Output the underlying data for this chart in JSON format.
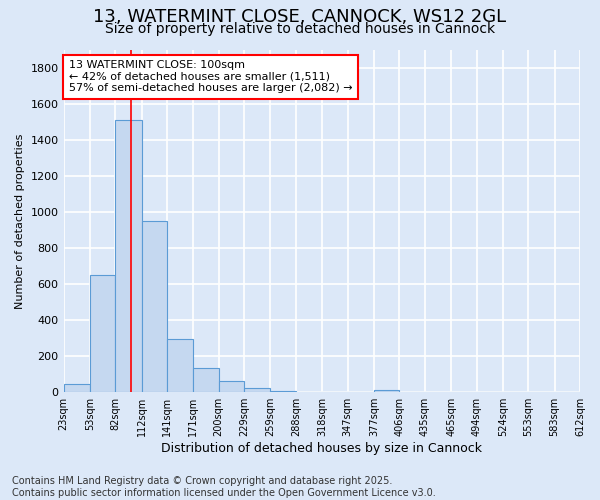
{
  "title_line1": "13, WATERMINT CLOSE, CANNOCK, WS12 2GL",
  "title_line2": "Size of property relative to detached houses in Cannock",
  "xlabel": "Distribution of detached houses by size in Cannock",
  "ylabel": "Number of detached properties",
  "footer_line1": "Contains HM Land Registry data © Crown copyright and database right 2025.",
  "footer_line2": "Contains public sector information licensed under the Open Government Licence v3.0.",
  "annotation_line1": "13 WATERMINT CLOSE: 100sqm",
  "annotation_line2": "← 42% of detached houses are smaller (1,511)",
  "annotation_line3": "57% of semi-detached houses are larger (2,082) →",
  "bar_edges": [
    23,
    53,
    82,
    112,
    141,
    171,
    200,
    229,
    259,
    288,
    318,
    347,
    377,
    406,
    435,
    465,
    494,
    524,
    553,
    583,
    612
  ],
  "bar_heights": [
    45,
    650,
    1511,
    950,
    295,
    135,
    65,
    22,
    5,
    0,
    0,
    0,
    15,
    0,
    0,
    0,
    0,
    0,
    0,
    0
  ],
  "bar_color": "#c5d8f0",
  "bar_edgecolor": "#5b9bd5",
  "vline_x": 100,
  "vline_color": "red",
  "bg_color": "#dce8f8",
  "plot_bg_color": "#dce8f8",
  "grid_color": "white",
  "ylim": [
    0,
    1900
  ],
  "yticks": [
    0,
    200,
    400,
    600,
    800,
    1000,
    1200,
    1400,
    1600,
    1800
  ],
  "annotation_box_edgecolor": "red",
  "annotation_box_facecolor": "white",
  "title_fontsize": 13,
  "subtitle_fontsize": 10,
  "xlabel_fontsize": 9,
  "ylabel_fontsize": 8,
  "footer_fontsize": 7
}
